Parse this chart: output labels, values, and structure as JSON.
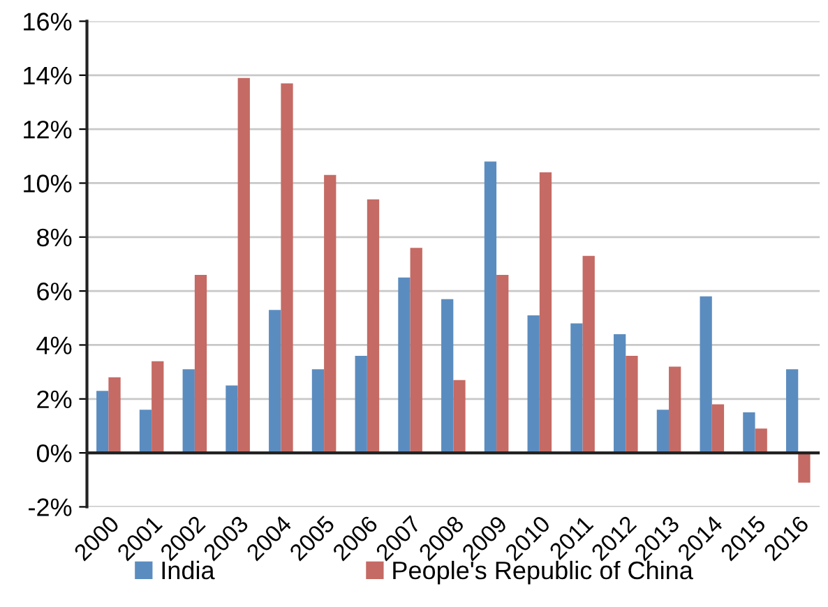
{
  "chart_data": {
    "type": "bar",
    "categories": [
      "2000",
      "2001",
      "2002",
      "2003",
      "2004",
      "2005",
      "2006",
      "2007",
      "2008",
      "2009",
      "2010",
      "2011",
      "2012",
      "2013",
      "2014",
      "2015",
      "2016"
    ],
    "series": [
      {
        "name": "India",
        "color": "#5b8cbf",
        "values": [
          2.3,
          1.6,
          3.1,
          2.5,
          5.3,
          3.1,
          3.6,
          6.5,
          5.7,
          10.8,
          5.1,
          4.8,
          4.4,
          1.6,
          5.8,
          1.5,
          3.1
        ]
      },
      {
        "name": "People's Republic of China",
        "color": "#c56a64",
        "values": [
          2.8,
          3.4,
          6.6,
          13.9,
          13.7,
          10.3,
          9.4,
          7.6,
          2.7,
          6.6,
          10.4,
          7.3,
          3.6,
          3.2,
          1.8,
          0.9,
          -1.1
        ]
      }
    ],
    "ylim": [
      -2,
      16
    ],
    "yticks": [
      {
        "value": -2,
        "label": "-2%"
      },
      {
        "value": 0,
        "label": "0%"
      },
      {
        "value": 2,
        "label": "2%"
      },
      {
        "value": 4,
        "label": "4%"
      },
      {
        "value": 6,
        "label": "6%"
      },
      {
        "value": 8,
        "label": "8%"
      },
      {
        "value": 10,
        "label": "10%"
      },
      {
        "value": 12,
        "label": "12%"
      },
      {
        "value": 14,
        "label": "14%"
      },
      {
        "value": 16,
        "label": "16%"
      }
    ],
    "grid": "y",
    "legend": "bottom"
  }
}
